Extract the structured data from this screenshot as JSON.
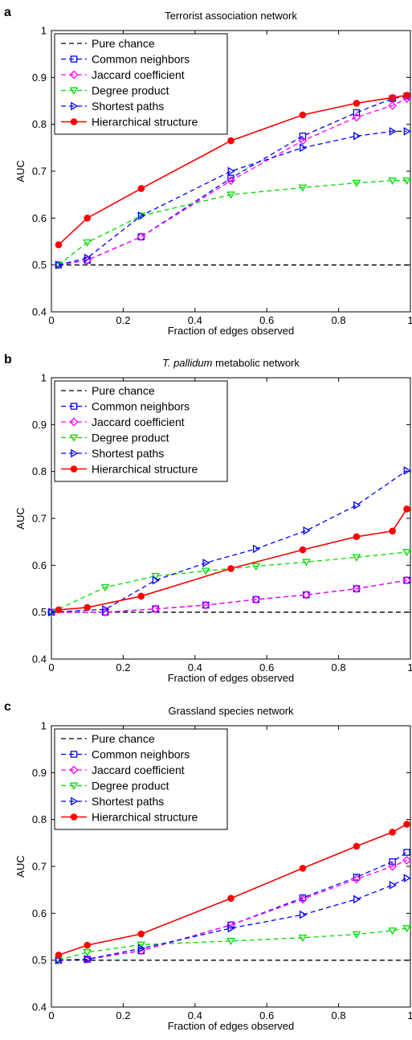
{
  "chart_data": [
    {
      "type": "line",
      "panel_label": "a",
      "title": "Terrorist association network",
      "title_italic": "",
      "xlabel": "Fraction of edges observed",
      "ylabel": "AUC",
      "xlim": [
        0,
        1
      ],
      "ylim": [
        0.4,
        1
      ],
      "xticks": [
        "0",
        "0.2",
        "0.4",
        "0.6",
        "0.8",
        "1"
      ],
      "yticks": [
        "0.4",
        "0.5",
        "0.6",
        "0.7",
        "0.8",
        "0.9",
        "1"
      ],
      "legend_position": "top-left",
      "series": [
        {
          "name": "Pure chance",
          "color": "#000000",
          "dash": "dashed",
          "marker": "none",
          "x": [
            0.02,
            1.0
          ],
          "y": [
            0.5,
            0.5
          ]
        },
        {
          "name": "Common neighbors",
          "color": "#0000ff",
          "dash": "dashed",
          "marker": "square",
          "x": [
            0.02,
            0.1,
            0.25,
            0.5,
            0.7,
            0.85,
            0.95,
            0.99
          ],
          "y": [
            0.5,
            0.51,
            0.56,
            0.685,
            0.775,
            0.825,
            0.855,
            0.86
          ]
        },
        {
          "name": "Jaccard coefficient",
          "color": "#ff00ff",
          "dash": "dashed",
          "marker": "diamond",
          "x": [
            0.02,
            0.1,
            0.25,
            0.5,
            0.7,
            0.85,
            0.95,
            0.99
          ],
          "y": [
            0.5,
            0.51,
            0.56,
            0.68,
            0.765,
            0.815,
            0.84,
            0.855
          ]
        },
        {
          "name": "Degree product",
          "color": "#00dd00",
          "dash": "dashed",
          "marker": "triangle-down",
          "x": [
            0.02,
            0.1,
            0.25,
            0.5,
            0.7,
            0.85,
            0.95,
            0.99
          ],
          "y": [
            0.5,
            0.548,
            0.605,
            0.65,
            0.665,
            0.675,
            0.68,
            0.68
          ]
        },
        {
          "name": "Shortest paths",
          "color": "#0000ff",
          "dash": "dashed",
          "marker": "triangle-right",
          "x": [
            0.02,
            0.1,
            0.25,
            0.5,
            0.7,
            0.85,
            0.95,
            0.99
          ],
          "y": [
            0.5,
            0.515,
            0.605,
            0.7,
            0.75,
            0.775,
            0.785,
            0.785
          ]
        },
        {
          "name": "Hierarchical structure",
          "color": "#ff0000",
          "dash": "solid",
          "marker": "circle",
          "x": [
            0.02,
            0.1,
            0.25,
            0.5,
            0.7,
            0.85,
            0.95,
            0.99
          ],
          "y": [
            0.543,
            0.6,
            0.663,
            0.765,
            0.82,
            0.845,
            0.857,
            0.862
          ]
        }
      ]
    },
    {
      "type": "line",
      "panel_label": "b",
      "title": " metabolic network",
      "title_italic": "T. pallidum",
      "xlabel": "Fraction of edges observed",
      "ylabel": "AUC",
      "xlim": [
        0,
        1
      ],
      "ylim": [
        0.4,
        1
      ],
      "xticks": [
        "0",
        "0.2",
        "0.4",
        "0.6",
        "0.8",
        "1"
      ],
      "yticks": [
        "0.4",
        "0.5",
        "0.6",
        "0.7",
        "0.8",
        "0.9",
        "1"
      ],
      "legend_position": "top-left",
      "series": [
        {
          "name": "Pure chance",
          "color": "#000000",
          "dash": "dashed",
          "marker": "none",
          "x": [
            0.02,
            1.0
          ],
          "y": [
            0.5,
            0.5
          ]
        },
        {
          "name": "Common neighbors",
          "color": "#0000ff",
          "dash": "dashed",
          "marker": "square",
          "x": [
            0.0,
            0.15,
            0.29,
            0.43,
            0.57,
            0.71,
            0.85,
            0.99
          ],
          "y": [
            0.5,
            0.5,
            0.507,
            0.515,
            0.527,
            0.537,
            0.55,
            0.568
          ]
        },
        {
          "name": "Jaccard coefficient",
          "color": "#ff00ff",
          "dash": "dashed",
          "marker": "diamond",
          "x": [
            0.0,
            0.15,
            0.29,
            0.43,
            0.57,
            0.71,
            0.85,
            0.99
          ],
          "y": [
            0.5,
            0.5,
            0.507,
            0.515,
            0.527,
            0.537,
            0.55,
            0.568
          ]
        },
        {
          "name": "Degree product",
          "color": "#00dd00",
          "dash": "dashed",
          "marker": "triangle-down",
          "x": [
            0.0,
            0.15,
            0.29,
            0.43,
            0.57,
            0.71,
            0.85,
            0.99
          ],
          "y": [
            0.5,
            0.553,
            0.577,
            0.588,
            0.598,
            0.607,
            0.617,
            0.628
          ]
        },
        {
          "name": "Shortest paths",
          "color": "#0000ff",
          "dash": "dashed",
          "marker": "triangle-right",
          "x": [
            0.0,
            0.15,
            0.29,
            0.43,
            0.57,
            0.71,
            0.85,
            0.99
          ],
          "y": [
            0.5,
            0.506,
            0.568,
            0.605,
            0.635,
            0.674,
            0.728,
            0.802
          ]
        },
        {
          "name": "Hierarchical structure",
          "color": "#ff0000",
          "dash": "solid",
          "marker": "circle",
          "x": [
            0.02,
            0.1,
            0.25,
            0.5,
            0.7,
            0.85,
            0.95,
            0.99
          ],
          "y": [
            0.505,
            0.51,
            0.534,
            0.593,
            0.633,
            0.661,
            0.673,
            0.72
          ]
        }
      ]
    },
    {
      "type": "line",
      "panel_label": "c",
      "title": "Grassland species network",
      "title_italic": "",
      "xlabel": "Fraction of edges observed",
      "ylabel": "AUC",
      "xlim": [
        0,
        1
      ],
      "ylim": [
        0.4,
        1
      ],
      "xticks": [
        "0",
        "0.2",
        "0.4",
        "0.6",
        "0.8",
        "1"
      ],
      "yticks": [
        "0.4",
        "0.5",
        "0.6",
        "0.7",
        "0.8",
        "0.9",
        "1"
      ],
      "legend_position": "top-left",
      "series": [
        {
          "name": "Pure chance",
          "color": "#000000",
          "dash": "dashed",
          "marker": "none",
          "x": [
            0.02,
            1.0
          ],
          "y": [
            0.5,
            0.5
          ]
        },
        {
          "name": "Common neighbors",
          "color": "#0000ff",
          "dash": "dashed",
          "marker": "square",
          "x": [
            0.02,
            0.1,
            0.25,
            0.5,
            0.7,
            0.85,
            0.95,
            0.99
          ],
          "y": [
            0.5,
            0.502,
            0.52,
            0.575,
            0.633,
            0.677,
            0.71,
            0.73
          ]
        },
        {
          "name": "Jaccard coefficient",
          "color": "#ff00ff",
          "dash": "dashed",
          "marker": "diamond",
          "x": [
            0.02,
            0.1,
            0.25,
            0.5,
            0.7,
            0.85,
            0.95,
            0.99
          ],
          "y": [
            0.5,
            0.502,
            0.52,
            0.575,
            0.63,
            0.673,
            0.7,
            0.713
          ]
        },
        {
          "name": "Degree product",
          "color": "#00dd00",
          "dash": "dashed",
          "marker": "triangle-down",
          "x": [
            0.02,
            0.1,
            0.25,
            0.5,
            0.7,
            0.85,
            0.95,
            0.99
          ],
          "y": [
            0.5,
            0.517,
            0.533,
            0.541,
            0.548,
            0.555,
            0.563,
            0.568
          ]
        },
        {
          "name": "Shortest paths",
          "color": "#0000ff",
          "dash": "dashed",
          "marker": "triangle-right",
          "x": [
            0.02,
            0.1,
            0.25,
            0.5,
            0.7,
            0.85,
            0.95,
            0.99
          ],
          "y": [
            0.5,
            0.502,
            0.525,
            0.568,
            0.597,
            0.63,
            0.66,
            0.675
          ]
        },
        {
          "name": "Hierarchical structure",
          "color": "#ff0000",
          "dash": "solid",
          "marker": "circle",
          "x": [
            0.02,
            0.1,
            0.25,
            0.5,
            0.7,
            0.85,
            0.95,
            0.99
          ],
          "y": [
            0.511,
            0.532,
            0.556,
            0.632,
            0.696,
            0.743,
            0.773,
            0.79
          ]
        }
      ]
    }
  ]
}
